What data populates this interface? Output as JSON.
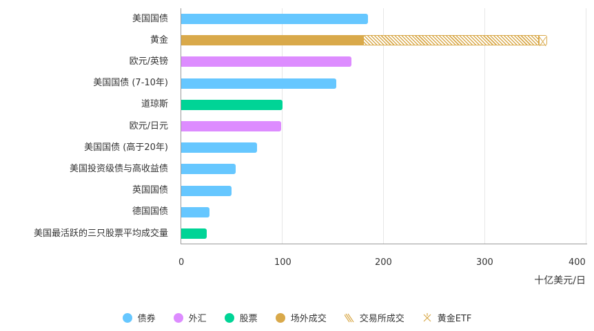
{
  "chart_data": {
    "type": "bar",
    "orientation": "horizontal",
    "stacked": true,
    "title": "",
    "xlabel": "十亿美元/日",
    "ylabel": "",
    "xlim": [
      0,
      400
    ],
    "xticks": [
      0,
      100,
      200,
      300,
      400
    ],
    "grid": true,
    "legend_position": "bottom",
    "categories": [
      "美国国债",
      "黄金",
      "欧元/英镑",
      "美国国债 (7-10年)",
      "道琼斯",
      "欧元/日元",
      "美国国债 (高于20年)",
      "美国投资级债与高收益债",
      "英国国债",
      "德国国债",
      "美国最活跃的三只股票平均成交量"
    ],
    "category_types": [
      "债券",
      "黄金",
      "外汇",
      "债券",
      "股票",
      "外汇",
      "债券",
      "债券",
      "债券",
      "债券",
      "股票"
    ],
    "values": [
      185,
      361,
      168,
      153,
      100,
      99,
      75,
      54,
      50,
      28,
      25
    ],
    "gold_breakdown": {
      "场外成交": 180,
      "交易所成交": 174,
      "黄金ETF": 7
    },
    "series": [
      {
        "name": "债券",
        "color": "#66c7ff"
      },
      {
        "name": "外汇",
        "color": "#dd8cff"
      },
      {
        "name": "股票",
        "color": "#00d496"
      },
      {
        "name": "场外成交",
        "color": "#d9a94a"
      },
      {
        "name": "交易所成交",
        "color": "#d9a94a",
        "pattern": "diagonal-hatch"
      },
      {
        "name": "黄金ETF",
        "color": "#d9a94a",
        "pattern": "cross"
      }
    ]
  },
  "axis": {
    "ticks": [
      "0",
      "100",
      "200",
      "300",
      "400"
    ],
    "unit": "十亿美元/日"
  },
  "legend": [
    {
      "label": "债券",
      "color": "#66c7ff",
      "icon": "circle"
    },
    {
      "label": "外汇",
      "color": "#dd8cff",
      "icon": "circle"
    },
    {
      "label": "股票",
      "color": "#00d496",
      "icon": "circle"
    },
    {
      "label": "场外成交",
      "color": "#d9a94a",
      "icon": "circle"
    },
    {
      "label": "交易所成交",
      "color": "#d9a94a",
      "icon": "hatch"
    },
    {
      "label": "黄金ETF",
      "color": "#d9a94a",
      "icon": "cross-hatch"
    }
  ],
  "rows": [
    {
      "label": "美国国债",
      "color": "#66c7ff",
      "value": 185
    },
    {
      "label": "黄金",
      "color": "#d9a94a",
      "value": 180,
      "exchange": 174,
      "etf": 7
    },
    {
      "label": "欧元/英镑",
      "color": "#dd8cff",
      "value": 168
    },
    {
      "label": "美国国债 (7-10年)",
      "color": "#66c7ff",
      "value": 153
    },
    {
      "label": "道琼斯",
      "color": "#00d496",
      "value": 100
    },
    {
      "label": "欧元/日元",
      "color": "#dd8cff",
      "value": 99
    },
    {
      "label": "美国国债 (高于20年)",
      "color": "#66c7ff",
      "value": 75
    },
    {
      "label": "美国投资级债与高收益债",
      "color": "#66c7ff",
      "value": 54
    },
    {
      "label": "英国国债",
      "color": "#66c7ff",
      "value": 50
    },
    {
      "label": "德国国债",
      "color": "#66c7ff",
      "value": 28
    },
    {
      "label": "美国最活跃的三只股票平均成交量",
      "color": "#00d496",
      "value": 25
    }
  ]
}
